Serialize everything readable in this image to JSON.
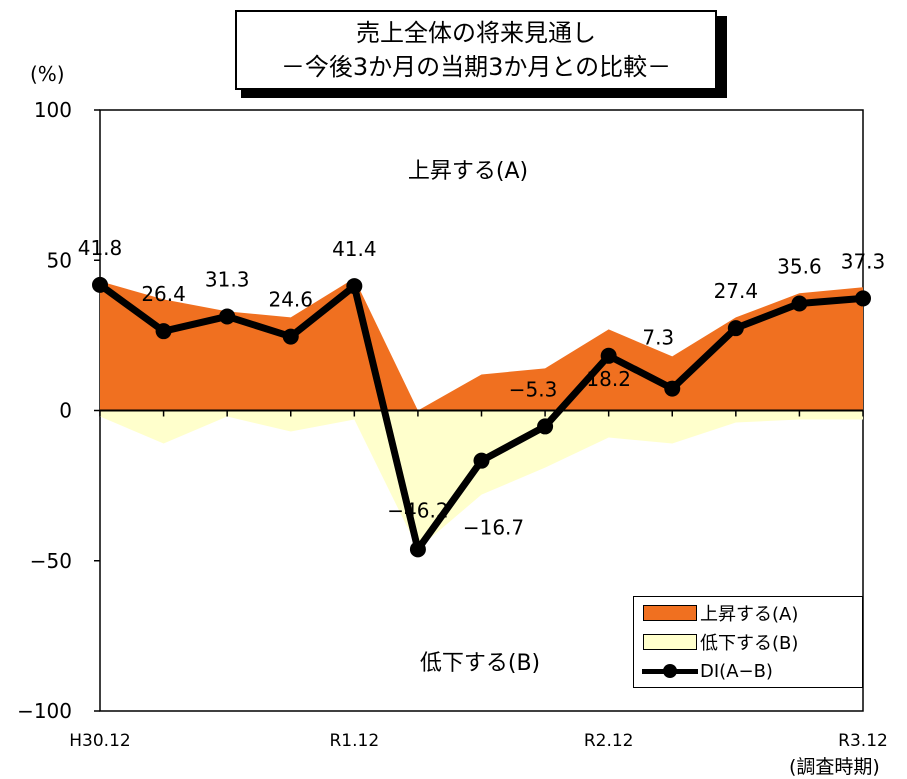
{
  "chart_data": {
    "type": "area",
    "title": "売上全体の将来見通し",
    "subtitle": "－今後3か月の当期3か月との比較－",
    "ylabel": "(%)",
    "xlabel": "(調査時期)",
    "ylim": [
      -100,
      100
    ],
    "yticks": [
      "100",
      "50",
      "0",
      "−50",
      "−100"
    ],
    "categories": [
      "H30.12",
      "",
      "",
      "",
      "R1.12",
      "",
      "",
      "",
      "R2.12",
      "",
      "",
      "",
      "R3.12"
    ],
    "series": [
      {
        "name": "上昇する(A)",
        "type": "area",
        "color": "#F07020",
        "values": [
          43,
          37,
          33,
          31,
          44,
          0,
          12,
          14,
          27,
          18,
          31,
          39,
          41
        ]
      },
      {
        "name": "低下する(B)",
        "type": "area",
        "color": "#FFFFCC",
        "values": [
          -2,
          -11,
          -2,
          -7,
          -3,
          -46,
          -28,
          -19,
          -9,
          -11,
          -4,
          -3,
          -3
        ]
      },
      {
        "name": "DI(A−B)",
        "type": "line",
        "color": "#000000",
        "values": [
          41.8,
          26.4,
          31.3,
          24.6,
          41.4,
          -46.2,
          -16.7,
          -5.3,
          18.2,
          7.3,
          27.4,
          35.6,
          37.3
        ],
        "labels": [
          "41.8",
          "26.4",
          "31.3",
          "24.6",
          "41.4",
          "−46.2",
          "−16.7",
          "−5.3",
          "18.2",
          "7.3",
          "27.4",
          "35.6",
          "37.3"
        ]
      }
    ],
    "annotations": {
      "upper": "上昇する(A)",
      "lower": "低下する(B)"
    },
    "legend_position": "bottom-right",
    "grid": false
  }
}
